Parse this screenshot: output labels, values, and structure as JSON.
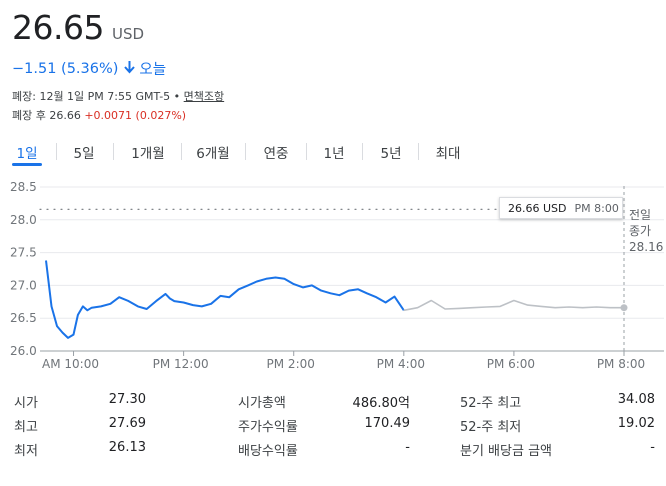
{
  "quote": {
    "price": "26.65",
    "currency": "USD",
    "change": "−1.51 (5.36%)",
    "change_arrow_icon": "arrow-down-icon",
    "period": "오늘",
    "close_label": "폐장: 12월 1일 PM 7:55 GMT-5 •",
    "disclaimer": "면책조항",
    "after_label": "폐장 후 26.66",
    "after_change": "+0.0071 (0.027%)",
    "up_color": "#d93025",
    "down_color": "#1a73e8"
  },
  "tabs": [
    {
      "label": "1일",
      "active": true
    },
    {
      "label": "5일"
    },
    {
      "label": "1개월"
    },
    {
      "label": "6개월"
    },
    {
      "label": "연중"
    },
    {
      "label": "1년"
    },
    {
      "label": "5년"
    },
    {
      "label": "최대"
    }
  ],
  "tooltip": {
    "price": "26.66 USD",
    "time": "PM 8:00"
  },
  "previous_close": {
    "line1": "전일",
    "line2": "종가",
    "value": "28.16"
  },
  "chart_data": {
    "type": "line",
    "ylim": [
      26.0,
      28.5
    ],
    "yticks": [
      "26.0",
      "26.5",
      "27.0",
      "27.5",
      "28.0",
      "28.5"
    ],
    "xlim": [
      9.3,
      20.4
    ],
    "xticks": [
      {
        "x": 10,
        "label": "AM 10:00"
      },
      {
        "x": 12,
        "label": "PM 12:00"
      },
      {
        "x": 14,
        "label": "PM 2:00"
      },
      {
        "x": 16,
        "label": "PM 4:00"
      },
      {
        "x": 18,
        "label": "PM 6:00"
      },
      {
        "x": 20,
        "label": "PM 8:00"
      }
    ],
    "previous_close": 28.16,
    "series": [
      {
        "session": "regular",
        "color": "#1a73e8",
        "x": [
          9.5,
          9.6,
          9.7,
          9.8,
          9.9,
          10.0,
          10.08,
          10.17,
          10.25,
          10.33,
          10.5,
          10.67,
          10.83,
          11.0,
          11.17,
          11.33,
          11.5,
          11.67,
          11.75,
          11.83,
          12.0,
          12.17,
          12.33,
          12.5,
          12.67,
          12.83,
          13.0,
          13.17,
          13.33,
          13.5,
          13.67,
          13.83,
          14.0,
          14.17,
          14.33,
          14.5,
          14.67,
          14.83,
          15.0,
          15.17,
          15.33,
          15.5,
          15.67,
          15.83,
          16.0
        ],
        "values": [
          27.38,
          26.68,
          26.38,
          26.28,
          26.2,
          26.25,
          26.55,
          26.68,
          26.62,
          26.66,
          26.68,
          26.72,
          26.82,
          26.76,
          26.68,
          26.64,
          26.76,
          26.87,
          26.8,
          26.76,
          26.74,
          26.7,
          26.68,
          26.72,
          26.84,
          26.82,
          26.94,
          27.0,
          27.06,
          27.1,
          27.12,
          27.1,
          27.02,
          26.97,
          27.0,
          26.92,
          26.88,
          26.85,
          26.92,
          26.94,
          26.88,
          26.82,
          26.74,
          26.83,
          26.62
        ]
      },
      {
        "session": "after-hours",
        "color": "#bdc1c6",
        "x": [
          16.0,
          16.25,
          16.5,
          16.75,
          17.0,
          17.25,
          17.5,
          17.75,
          18.0,
          18.25,
          18.5,
          18.75,
          19.0,
          19.25,
          19.5,
          19.75,
          20.0
        ],
        "values": [
          26.62,
          26.66,
          26.77,
          26.64,
          26.65,
          26.66,
          26.67,
          26.68,
          26.77,
          26.7,
          26.68,
          26.66,
          26.67,
          26.66,
          26.67,
          26.66,
          26.66
        ]
      }
    ]
  },
  "stats": {
    "col1": [
      {
        "label": "시가",
        "value": "27.30"
      },
      {
        "label": "최고",
        "value": "27.69"
      },
      {
        "label": "최저",
        "value": "26.13"
      }
    ],
    "col2": [
      {
        "label": "시가총액",
        "value": "486.80억"
      },
      {
        "label": "주가수익률",
        "value": "170.49"
      },
      {
        "label": "배당수익률",
        "value": "-"
      }
    ],
    "col3": [
      {
        "label": "52-주 최고",
        "value": "34.08"
      },
      {
        "label": "52-주 최저",
        "value": "19.02"
      },
      {
        "label": "분기 배당금 금액",
        "value": "-"
      }
    ]
  }
}
